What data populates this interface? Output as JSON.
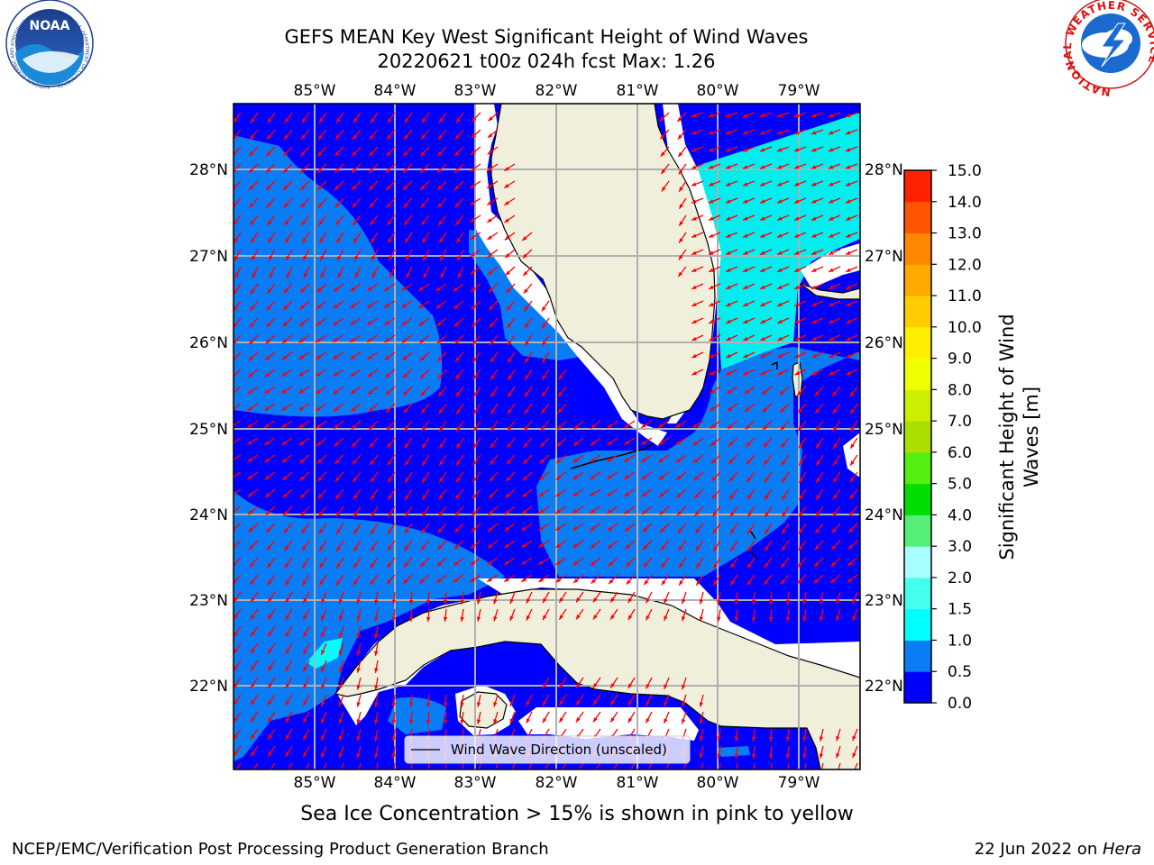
{
  "title_line1": "GEFS MEAN Key West Significant Height of Wind Waves",
  "title_line2": "20220621 t00z 024h fcst   Max: 1.26",
  "map": {
    "lon_labels": [
      "85°W",
      "84°W",
      "83°W",
      "82°W",
      "81°W",
      "80°W",
      "79°W"
    ],
    "lat_labels": [
      "28°N",
      "27°N",
      "26°N",
      "25°N",
      "24°N",
      "23°N",
      "22°N"
    ],
    "ocean_dark_color": "#0000ff",
    "ocean_mid_color": "#0a7cf4",
    "ocean_cyan_color": "#00ffff",
    "ocean_lightcyan_color": "#00e8ee",
    "land_color": "#efefdc",
    "arrow_color": "#ff0000",
    "grid_color": "#b0b0b0"
  },
  "legend": {
    "label": "Wind Wave Direction (unscaled)"
  },
  "colorbar": {
    "label_line1": "Significant Height of Wind",
    "label_line2": "Waves [m]",
    "ticks": [
      "0.0",
      "0.5",
      "1.0",
      "1.5",
      "2.0",
      "3.0",
      "4.0",
      "5.0",
      "6.0",
      "7.0",
      "8.0",
      "9.0",
      "10.0",
      "11.0",
      "12.0",
      "13.0",
      "14.0",
      "15.0"
    ],
    "colors": [
      "#0000ff",
      "#0a7cf4",
      "#00ffff",
      "#44ffee",
      "#a8ffff",
      "#55ee77",
      "#00dd00",
      "#55ee11",
      "#aadd00",
      "#ccee00",
      "#eeff00",
      "#ffee00",
      "#ffcc00",
      "#ffaa00",
      "#ff8800",
      "#ff5500",
      "#ff2200"
    ]
  },
  "chart_data": {
    "type": "heatmap",
    "variable": "Significant Height of Wind Waves",
    "units": "m",
    "max": 1.26,
    "lon_range": [
      -86,
      -78.4
    ],
    "lat_range": [
      21,
      28.8
    ],
    "color_levels": [
      0.0,
      0.5,
      1.0,
      1.5,
      2.0,
      3.0,
      4.0,
      5.0,
      6.0,
      7.0,
      8.0,
      9.0,
      10.0,
      11.0,
      12.0,
      13.0,
      14.0,
      15.0
    ]
  },
  "footer": {
    "note": "Sea Ice Concentration > 15% is shown in pink to yellow",
    "left": "NCEP/EMC/Verification Post Processing Product Generation Branch",
    "right_date": "22 Jun 2022 on ",
    "right_host": "Hera"
  },
  "logos": {
    "noaa_text": "NOAA",
    "noaa_ring_text": "NATIONAL OCEANIC AND ATMOSPHERIC ADMINISTRATION · U.S. DEPARTMENT OF COMMERCE",
    "nws_ring_text": "NATIONAL WEATHER SERVICE"
  }
}
